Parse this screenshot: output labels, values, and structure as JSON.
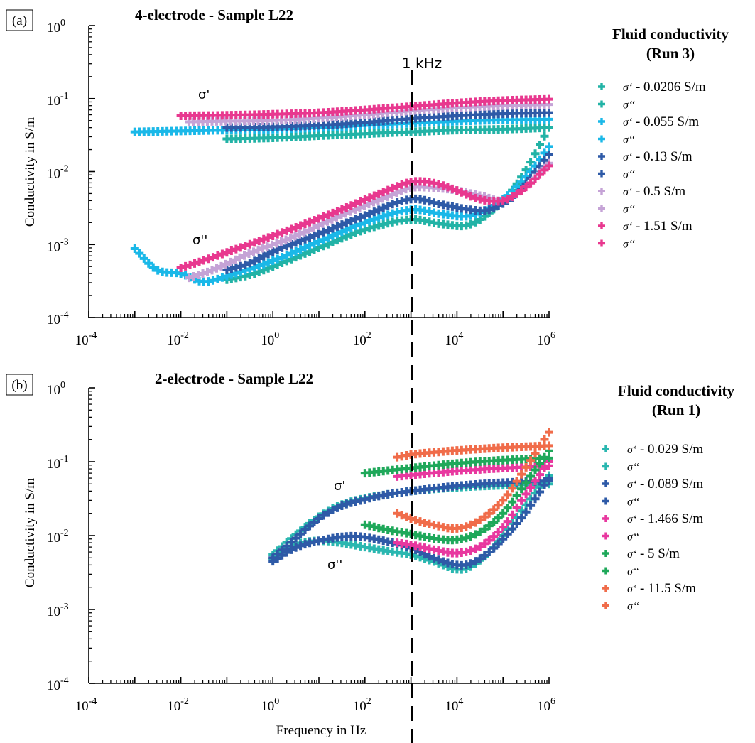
{
  "frequency_marker": {
    "label": "1 kHz",
    "value_hz": 1000
  },
  "chart_data": [
    {
      "type": "scatter",
      "panel_tag": "(a)",
      "title": "4-electrode -  Sample L22",
      "xlabel": "",
      "ylabel": "Conductivity in S/m",
      "xscale": "log",
      "yscale": "log",
      "xlim": [
        0.0001,
        1000000
      ],
      "ylim": [
        0.0001,
        1
      ],
      "x_ticks": [
        {
          "base": "10",
          "exp": "-4"
        },
        {
          "base": "10",
          "exp": "-2"
        },
        {
          "base": "10",
          "exp": "0"
        },
        {
          "base": "10",
          "exp": "2"
        },
        {
          "base": "10",
          "exp": "4"
        },
        {
          "base": "10",
          "exp": "6"
        }
      ],
      "y_ticks": [
        {
          "base": "10",
          "exp": "0"
        },
        {
          "base": "10",
          "exp": "-1"
        },
        {
          "base": "10",
          "exp": "-2"
        },
        {
          "base": "10",
          "exp": "-3"
        },
        {
          "base": "10",
          "exp": "-4"
        }
      ],
      "annotations": {
        "sigma_real": "σ'",
        "sigma_imag": "σ''"
      },
      "legend": {
        "title_line1": "Fluid conductivity",
        "title_line2": "(Run 3)",
        "placement": "right",
        "entries": [
          {
            "sym": "σ‘",
            "text": " - 0.0206 S/m",
            "color": "#22b3a6"
          },
          {
            "sym": "σ‘‘",
            "text": "",
            "color": "#22b3a6"
          },
          {
            "sym": "σ‘",
            "text": " - 0.055 S/m",
            "color": "#1ab8e8"
          },
          {
            "sym": "σ‘‘",
            "text": "",
            "color": "#1ab8e8"
          },
          {
            "sym": "σ‘",
            "text": " - 0.13 S/m",
            "color": "#2e5aa7"
          },
          {
            "sym": "σ‘‘",
            "text": "",
            "color": "#2e5aa7"
          },
          {
            "sym": "σ‘",
            "text": " - 0.5 S/m",
            "color": "#c5a3d6"
          },
          {
            "sym": "σ‘‘",
            "text": "",
            "color": "#c5a3d6"
          },
          {
            "sym": "σ‘",
            "text": " - 1.51 S/m",
            "color": "#e8388f"
          },
          {
            "sym": "σ‘‘",
            "text": "",
            "color": "#e8388f"
          }
        ]
      },
      "series": [
        {
          "fluid": "0.0206 S/m",
          "part": "real",
          "color": "#22b3a6",
          "x_range": [
            0.1,
            1000000
          ],
          "x": [
            0.1,
            1,
            10,
            100,
            1000,
            10000,
            100000,
            1000000
          ],
          "y": [
            0.028,
            0.029,
            0.031,
            0.033,
            0.035,
            0.037,
            0.038,
            0.04
          ]
        },
        {
          "fluid": "0.0206 S/m",
          "part": "imag",
          "color": "#22b3a6",
          "x_range": [
            0.1,
            1000000
          ],
          "x": [
            0.1,
            0.3,
            1,
            10,
            100,
            1000,
            5000,
            20000,
            100000,
            300000,
            1000000
          ],
          "y": [
            0.00033,
            0.00038,
            0.0005,
            0.0009,
            0.0016,
            0.0022,
            0.0019,
            0.0019,
            0.004,
            0.01,
            0.04
          ]
        },
        {
          "fluid": "0.055 S/m",
          "part": "real",
          "color": "#1ab8e8",
          "x_range": [
            0.001,
            1000000
          ],
          "x": [
            0.001,
            0.01,
            0.1,
            1,
            10,
            100,
            1000,
            10000,
            100000,
            1000000
          ],
          "y": [
            0.035,
            0.036,
            0.037,
            0.038,
            0.04,
            0.043,
            0.046,
            0.049,
            0.051,
            0.052
          ]
        },
        {
          "fluid": "0.055 S/m",
          "part": "imag",
          "color": "#1ab8e8",
          "x_range": [
            0.001,
            1000000
          ],
          "x": [
            0.001,
            0.003,
            0.01,
            0.03,
            0.1,
            1,
            10,
            100,
            1000,
            5000,
            20000,
            100000,
            400000,
            1000000
          ],
          "y": [
            0.00088,
            0.00045,
            0.0004,
            0.00031,
            0.00037,
            0.0006,
            0.0011,
            0.002,
            0.003,
            0.0026,
            0.0025,
            0.0042,
            0.01,
            0.022
          ]
        },
        {
          "fluid": "0.13 S/m",
          "part": "real",
          "color": "#2e5aa7",
          "x_range": [
            0.1,
            1000000
          ],
          "x": [
            0.1,
            1,
            10,
            100,
            1000,
            10000,
            100000,
            1000000
          ],
          "y": [
            0.04,
            0.041,
            0.043,
            0.047,
            0.053,
            0.058,
            0.062,
            0.064
          ]
        },
        {
          "fluid": "0.13 S/m",
          "part": "imag",
          "color": "#2e5aa7",
          "x_range": [
            0.1,
            1000000
          ],
          "x": [
            0.1,
            0.3,
            1,
            10,
            100,
            1000,
            5000,
            20000,
            50000,
            200000,
            1000000
          ],
          "y": [
            0.00045,
            0.00055,
            0.0008,
            0.0014,
            0.0025,
            0.0042,
            0.0035,
            0.003,
            0.003,
            0.005,
            0.017
          ]
        },
        {
          "fluid": "0.5 S/m",
          "part": "real",
          "color": "#c5a3d6",
          "x_range": [
            0.015,
            1000000
          ],
          "x": [
            0.015,
            0.1,
            1,
            10,
            100,
            1000,
            10000,
            100000,
            1000000
          ],
          "y": [
            0.048,
            0.049,
            0.05,
            0.054,
            0.06,
            0.068,
            0.075,
            0.08,
            0.083
          ]
        },
        {
          "fluid": "0.5 S/m",
          "part": "imag",
          "color": "#c5a3d6",
          "x_range": [
            0.015,
            1000000
          ],
          "x": [
            0.015,
            0.05,
            0.3,
            3,
            30,
            300,
            1000,
            3000,
            10000,
            40000,
            100000,
            300000,
            1000000
          ],
          "y": [
            0.00035,
            0.00045,
            0.00075,
            0.0013,
            0.0025,
            0.0045,
            0.006,
            0.006,
            0.0055,
            0.0045,
            0.004,
            0.006,
            0.013
          ]
        },
        {
          "fluid": "1.51 S/m",
          "part": "real",
          "color": "#e8388f",
          "x_range": [
            0.01,
            1000000
          ],
          "x": [
            0.01,
            0.1,
            1,
            10,
            100,
            1000,
            10000,
            100000,
            1000000
          ],
          "y": [
            0.058,
            0.059,
            0.061,
            0.064,
            0.07,
            0.078,
            0.087,
            0.094,
            0.098
          ]
        },
        {
          "fluid": "1.51 S/m",
          "part": "imag",
          "color": "#e8388f",
          "x_range": [
            0.01,
            1000000
          ],
          "x": [
            0.01,
            0.03,
            0.3,
            3,
            30,
            300,
            1000,
            3000,
            10000,
            30000,
            100000,
            300000,
            1000000
          ],
          "y": [
            0.00048,
            0.0006,
            0.001,
            0.0017,
            0.003,
            0.0055,
            0.0072,
            0.007,
            0.0055,
            0.0042,
            0.004,
            0.006,
            0.012
          ]
        }
      ]
    },
    {
      "type": "scatter",
      "panel_tag": "(b)",
      "title": "2-electrode - Sample L22",
      "xlabel": "Frequency in Hz",
      "ylabel": "Conductivity in S/m",
      "xscale": "log",
      "yscale": "log",
      "xlim": [
        0.0001,
        1000000
      ],
      "ylim": [
        0.0001,
        1
      ],
      "x_ticks": [
        {
          "base": "10",
          "exp": "-4"
        },
        {
          "base": "10",
          "exp": "-2"
        },
        {
          "base": "10",
          "exp": "0"
        },
        {
          "base": "10",
          "exp": "2"
        },
        {
          "base": "10",
          "exp": "4"
        },
        {
          "base": "10",
          "exp": "6"
        }
      ],
      "y_ticks": [
        {
          "base": "10",
          "exp": "0"
        },
        {
          "base": "10",
          "exp": "-1"
        },
        {
          "base": "10",
          "exp": "-2"
        },
        {
          "base": "10",
          "exp": "-3"
        },
        {
          "base": "10",
          "exp": "-4"
        }
      ],
      "annotations": {
        "sigma_real": "σ'",
        "sigma_imag": "σ''"
      },
      "legend": {
        "title_line1": "Fluid conductivity",
        "title_line2": "(Run 1)",
        "placement": "right",
        "entries": [
          {
            "sym": "σ‘",
            "text": " - 0.029 S/m",
            "color": "#2ab7b0"
          },
          {
            "sym": "σ‘‘",
            "text": "",
            "color": "#2ab7b0"
          },
          {
            "sym": "σ‘",
            "text": " - 0.089 S/m",
            "color": "#2e5aa7"
          },
          {
            "sym": "σ‘‘",
            "text": "",
            "color": "#2e5aa7"
          },
          {
            "sym": "σ‘",
            "text": " - 1.466 S/m",
            "color": "#e8389f"
          },
          {
            "sym": "σ‘‘",
            "text": "",
            "color": "#e8389f"
          },
          {
            "sym": "σ‘",
            "text": " - 5 S/m",
            "color": "#1fa85a"
          },
          {
            "sym": "σ‘‘",
            "text": "",
            "color": "#1fa85a"
          },
          {
            "sym": "σ‘",
            "text": " - 11.5 S/m",
            "color": "#f06c4a"
          },
          {
            "sym": "σ‘‘",
            "text": "",
            "color": "#f06c4a"
          }
        ]
      },
      "series": [
        {
          "fluid": "0.029 S/m",
          "part": "real",
          "color": "#2ab7b0",
          "x_range": [
            1,
            1000000
          ],
          "x": [
            1,
            3,
            10,
            30,
            100,
            300,
            1000,
            10000,
            100000,
            1000000
          ],
          "y": [
            0.0055,
            0.01,
            0.018,
            0.026,
            0.032,
            0.036,
            0.04,
            0.045,
            0.048,
            0.05
          ]
        },
        {
          "fluid": "0.029 S/m",
          "part": "imag",
          "color": "#2ab7b0",
          "x_range": [
            1,
            1000000
          ],
          "x": [
            1,
            3,
            10,
            30,
            100,
            300,
            1000,
            3000,
            10000,
            20000,
            50000,
            100000,
            300000,
            1000000
          ],
          "y": [
            0.0048,
            0.0075,
            0.0085,
            0.008,
            0.007,
            0.0062,
            0.0055,
            0.0045,
            0.0035,
            0.0038,
            0.006,
            0.01,
            0.025,
            0.065
          ]
        },
        {
          "fluid": "0.089 S/m",
          "part": "real",
          "color": "#2e5aa7",
          "x_range": [
            1,
            1000000
          ],
          "x": [
            1,
            3,
            10,
            30,
            100,
            300,
            1000,
            10000,
            100000,
            1000000
          ],
          "y": [
            0.005,
            0.009,
            0.017,
            0.025,
            0.031,
            0.036,
            0.04,
            0.047,
            0.052,
            0.055
          ]
        },
        {
          "fluid": "0.089 S/m",
          "part": "imag",
          "color": "#2e5aa7",
          "x_range": [
            1,
            1000000
          ],
          "x": [
            1,
            3,
            10,
            50,
            200,
            1000,
            3000,
            10000,
            20000,
            50000,
            100000,
            300000,
            1000000
          ],
          "y": [
            0.0045,
            0.0068,
            0.0085,
            0.0098,
            0.0088,
            0.0068,
            0.005,
            0.004,
            0.0042,
            0.006,
            0.009,
            0.02,
            0.06
          ]
        },
        {
          "fluid": "1.466 S/m",
          "part": "real",
          "color": "#e8389f",
          "x_range": [
            500,
            1000000
          ],
          "x": [
            500,
            1000,
            10000,
            100000,
            1000000
          ],
          "y": [
            0.063,
            0.066,
            0.075,
            0.082,
            0.088
          ]
        },
        {
          "fluid": "1.466 S/m",
          "part": "imag",
          "color": "#e8389f",
          "x_range": [
            500,
            1000000
          ],
          "x": [
            500,
            1000,
            3000,
            10000,
            30000,
            100000,
            300000,
            1000000
          ],
          "y": [
            0.008,
            0.0075,
            0.0065,
            0.0058,
            0.007,
            0.013,
            0.035,
            0.1
          ]
        },
        {
          "fluid": "5 S/m",
          "part": "real",
          "color": "#1fa85a",
          "x_range": [
            100,
            1000000
          ],
          "x": [
            100,
            1000,
            10000,
            100000,
            1000000
          ],
          "y": [
            0.07,
            0.082,
            0.095,
            0.105,
            0.112
          ]
        },
        {
          "fluid": "5 S/m",
          "part": "imag",
          "color": "#1fa85a",
          "x_range": [
            100,
            1000000
          ],
          "x": [
            100,
            300,
            1000,
            3000,
            10000,
            30000,
            100000,
            300000,
            1000000
          ],
          "y": [
            0.014,
            0.012,
            0.0105,
            0.0092,
            0.0088,
            0.011,
            0.02,
            0.05,
            0.14
          ]
        },
        {
          "fluid": "11.5 S/m",
          "part": "real",
          "color": "#f06c4a",
          "x_range": [
            500,
            1000000
          ],
          "x": [
            500,
            1000,
            10000,
            100000,
            1000000
          ],
          "y": [
            0.115,
            0.125,
            0.142,
            0.155,
            0.165
          ]
        },
        {
          "fluid": "11.5 S/m",
          "part": "imag",
          "color": "#f06c4a",
          "x_range": [
            500,
            1000000
          ],
          "x": [
            500,
            1000,
            3000,
            10000,
            30000,
            100000,
            300000,
            1000000
          ],
          "y": [
            0.02,
            0.017,
            0.014,
            0.0125,
            0.016,
            0.03,
            0.08,
            0.25
          ]
        }
      ]
    }
  ]
}
